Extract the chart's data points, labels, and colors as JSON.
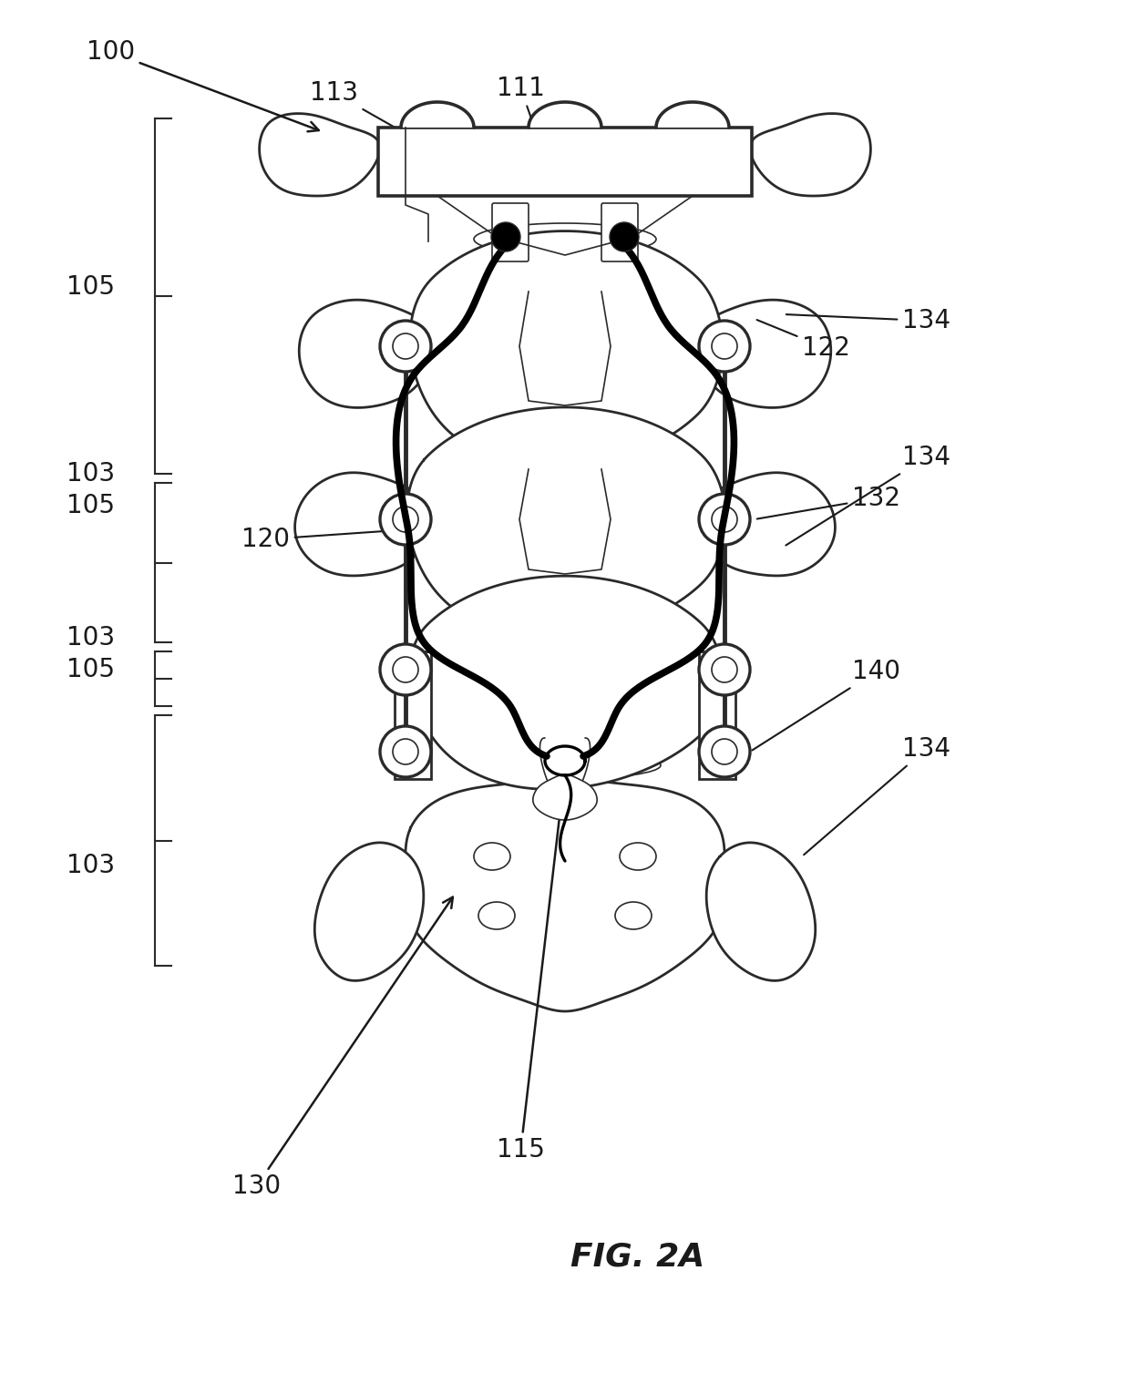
{
  "bg_color": "#ffffff",
  "line_color": "#2a2a2a",
  "fig_label": "FIG. 2A",
  "lw_body": 2.0,
  "lw_thin": 1.2,
  "lw_cable": 5.5,
  "lw_rod": 3.5
}
